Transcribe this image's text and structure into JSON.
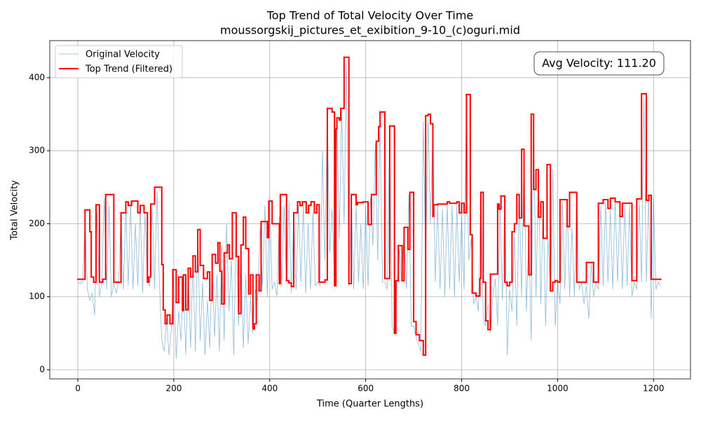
{
  "chart_data": {
    "type": "line",
    "title": "Top Trend of Total Velocity Over Time",
    "subtitle": "moussorgskij_pictures_et_exibition_9-10_(c)oguri.mid",
    "x_label": "Time (Quarter Lengths)",
    "y_label": "Total Velocity",
    "annotation": "Avg Velocity: 111.20",
    "xlim": [
      -58.5,
      1277
    ],
    "ylim": [
      -12.5,
      450.8
    ],
    "xticks": [
      0,
      200,
      400,
      600,
      800,
      1000,
      1200
    ],
    "yticks": [
      0,
      100,
      200,
      300,
      400
    ],
    "grid": true,
    "legend": "upper left",
    "series": [
      {
        "name": "Original Velocity",
        "color": "#1f77b4",
        "x": [
          0,
          5,
          10,
          15,
          20,
          25,
          30,
          35,
          40,
          45,
          50,
          55,
          60,
          65,
          70,
          75,
          80,
          85,
          90,
          95,
          100,
          105,
          110,
          115,
          120,
          125,
          130,
          135,
          140,
          145,
          150,
          155,
          160,
          165,
          170,
          175,
          180,
          185,
          190,
          195,
          200,
          205,
          210,
          215,
          220,
          225,
          230,
          235,
          240,
          245,
          250,
          255,
          260,
          265,
          270,
          275,
          280,
          285,
          290,
          295,
          300,
          305,
          310,
          315,
          320,
          325,
          330,
          335,
          340,
          345,
          350,
          355,
          360,
          365,
          370,
          375,
          380,
          385,
          390,
          395,
          400,
          405,
          410,
          415,
          420,
          425,
          430,
          435,
          440,
          445,
          450,
          455,
          460,
          465,
          470,
          475,
          480,
          485,
          490,
          495,
          500,
          505,
          510,
          515,
          520,
          525,
          530,
          535,
          540,
          545,
          550,
          555,
          560,
          565,
          570,
          575,
          580,
          585,
          590,
          595,
          600,
          605,
          610,
          615,
          620,
          625,
          630,
          635,
          640,
          645,
          650,
          655,
          660,
          665,
          670,
          675,
          680,
          685,
          690,
          695,
          700,
          705,
          710,
          715,
          720,
          725,
          730,
          735,
          740,
          745,
          750,
          755,
          760,
          765,
          770,
          775,
          780,
          785,
          790,
          795,
          800,
          805,
          810,
          815,
          820,
          825,
          830,
          835,
          840,
          845,
          850,
          855,
          860,
          865,
          870,
          875,
          880,
          885,
          890,
          895,
          900,
          905,
          910,
          915,
          920,
          925,
          930,
          935,
          940,
          945,
          950,
          955,
          960,
          965,
          970,
          975,
          980,
          985,
          990,
          995,
          1000,
          1005,
          1010,
          1015,
          1020,
          1025,
          1030,
          1035,
          1040,
          1045,
          1050,
          1055,
          1060,
          1065,
          1070,
          1075,
          1080,
          1085,
          1090,
          1095,
          1100,
          1105,
          1110,
          1115,
          1120,
          1125,
          1130,
          1135,
          1140,
          1145,
          1150,
          1155,
          1160,
          1165,
          1170,
          1175,
          1180,
          1185,
          1190,
          1195,
          1200,
          1205,
          1210,
          1215
        ],
        "values": [
          120,
          118,
          121,
          200,
          110,
          95,
          105,
          75,
          215,
          100,
          120,
          235,
          110,
          225,
          100,
          120,
          105,
          118,
          210,
          110,
          225,
          115,
          230,
          110,
          200,
          115,
          225,
          105,
          215,
          120,
          115,
          225,
          110,
          245,
          120,
          40,
          25,
          70,
          20,
          55,
          130,
          15,
          80,
          40,
          120,
          20,
          135,
          30,
          150,
          25,
          185,
          40,
          120,
          20,
          95,
          30,
          150,
          45,
          130,
          25,
          170,
          40,
          200,
          80,
          150,
          20,
          200,
          60,
          160,
          30,
          130,
          35,
          100,
          50,
          110,
          95,
          195,
          115,
          225,
          100,
          235,
          110,
          120,
          100,
          210,
          115,
          225,
          120,
          230,
          105,
          210,
          110,
          225,
          120,
          225,
          105,
          200,
          110,
          215,
          115,
          120,
          115,
          300,
          150,
          350,
          160,
          220,
          120,
          340,
          180,
          355,
          200,
          420,
          115,
          230,
          110,
          225,
          120,
          200,
          110,
          225,
          115,
          235,
          170,
          310,
          150,
          340,
          120,
          120,
          110,
          330,
          60,
          50,
          110,
          165,
          120,
          190,
          110,
          240,
          60,
          60,
          45,
          35,
          25,
          340,
          150,
          345,
          200,
          330,
          120,
          225,
          110,
          220,
          100,
          225,
          110,
          225,
          100,
          225,
          120,
          210,
          110,
          370,
          150,
          180,
          90,
          100,
          80,
          240,
          70,
          60,
          90,
          50,
          100,
          125,
          60,
          225,
          95,
          235,
          20,
          110,
          80,
          185,
          60,
          240,
          100,
          300,
          80,
          190,
          40,
          345,
          100,
          270,
          90,
          225,
          60,
          180,
          110,
          275,
          60,
          120,
          90,
          230,
          110,
          230,
          100,
          195,
          100,
          240,
          110,
          120,
          90,
          115,
          70,
          145,
          100,
          120,
          110,
          225,
          115,
          230,
          120,
          220,
          110,
          235,
          120,
          225,
          110,
          225,
          115,
          225,
          100,
          120,
          110,
          230,
          120,
          375,
          120,
          235,
          70,
          235,
          110,
          120,
          115
        ]
      },
      {
        "name": "Top Trend (Filtered)",
        "color": "#ff0000",
        "drawstyle": "steps-post",
        "x": [
          0,
          15,
          25,
          28,
          33,
          38,
          45,
          52,
          58,
          75,
          90,
          100,
          105,
          112,
          125,
          130,
          138,
          145,
          148,
          152,
          160,
          175,
          178,
          182,
          186,
          192,
          198,
          205,
          210,
          218,
          220,
          225,
          230,
          235,
          240,
          245,
          250,
          255,
          262,
          270,
          275,
          280,
          287,
          292,
          296,
          300,
          305,
          312,
          316,
          322,
          330,
          335,
          340,
          345,
          350,
          356,
          360,
          365,
          368,
          372,
          378,
          382,
          395,
          398,
          405,
          420,
          422,
          435,
          440,
          445,
          450,
          458,
          463,
          468,
          476,
          481,
          486,
          493,
          498,
          503,
          515,
          520,
          530,
          535,
          538,
          540,
          545,
          548,
          555,
          565,
          570,
          580,
          583,
          595,
          605,
          612,
          622,
          627,
          630,
          640,
          650,
          660,
          663,
          668,
          676,
          680,
          688,
          692,
          700,
          705,
          712,
          720,
          725,
          730,
          735,
          740,
          742,
          750,
          770,
          775,
          790,
          795,
          800,
          805,
          810,
          818,
          822,
          830,
          838,
          840,
          845,
          850,
          855,
          860,
          875,
          878,
          882,
          890,
          895,
          900,
          905,
          910,
          915,
          920,
          925,
          930,
          940,
          945,
          950,
          955,
          960,
          965,
          970,
          978,
          985,
          990,
          995,
          1000,
          1005,
          1020,
          1025,
          1040,
          1060,
          1075,
          1085,
          1095,
          1105,
          1110,
          1120,
          1130,
          1135,
          1155,
          1165,
          1175,
          1185,
          1190,
          1195,
          1215
        ],
        "values": [
          124,
          219,
          189,
          127,
          120,
          226,
          120,
          124,
          240,
          120,
          215,
          230,
          225,
          231,
          215,
          225,
          215,
          120,
          127,
          227,
          250,
          144,
          82,
          63,
          75,
          63,
          137,
          92,
          127,
          81,
          130,
          82,
          139,
          127,
          156,
          134,
          192,
          143,
          125,
          134,
          95,
          158,
          146,
          174,
          135,
          90,
          160,
          171,
          152,
          215,
          155,
          77,
          171,
          209,
          166,
          104,
          130,
          56,
          63,
          130,
          108,
          203,
          181,
          231,
          200,
          118,
          240,
          122,
          119,
          114,
          215,
          230,
          225,
          230,
          215,
          225,
          230,
          215,
          226,
          120,
          123,
          358,
          353,
          115,
          330,
          345,
          342,
          358,
          428,
          118,
          240,
          226,
          229,
          230,
          199,
          240,
          313,
          333,
          353,
          125,
          334,
          50,
          122,
          170,
          122,
          195,
          165,
          243,
          66,
          48,
          40,
          20,
          348,
          350,
          337,
          210,
          226,
          227,
          230,
          228,
          230,
          215,
          228,
          215,
          377,
          185,
          105,
          101,
          125,
          243,
          120,
          67,
          55,
          131,
          227,
          220,
          238,
          120,
          115,
          120,
          189,
          200,
          240,
          208,
          302,
          197,
          130,
          350,
          247,
          274,
          209,
          230,
          180,
          281,
          108,
          120,
          122,
          120,
          233,
          196,
          243,
          120,
          147,
          120,
          228,
          233,
          221,
          235,
          230,
          210,
          228,
          122,
          234,
          378,
          232,
          239,
          124,
          124
        ]
      }
    ]
  }
}
